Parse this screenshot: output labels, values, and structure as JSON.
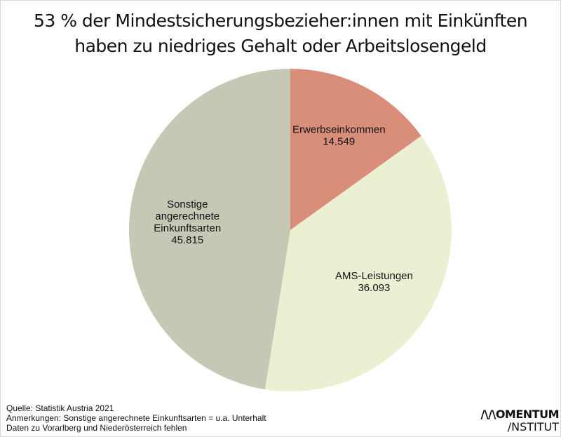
{
  "chart_data": {
    "type": "pie",
    "title": "53 % der Mindestsicherungsbezieher:innen mit Einkünften haben zu niedriges Gehalt oder Arbeitslosengeld",
    "title_lines": [
      "53 % der Mindestsicherungsbezieher:innen mit Einkünften",
      "haben zu niedriges Gehalt oder Arbeitslosengeld"
    ],
    "start": "top",
    "direction": "clockwise",
    "slices": [
      {
        "label": "Erwerbseinkommen",
        "value": 14549,
        "value_label": "14.549",
        "color": "#d98e79",
        "label_lines": [
          "Erwerbseinkommen"
        ]
      },
      {
        "label": "AMS-Leistungen",
        "value": 36093,
        "value_label": "36.093",
        "color": "#ecf0d3",
        "label_lines": [
          "AMS-Leistungen"
        ]
      },
      {
        "label": "Sonstige angerechnete Einkunftsarten",
        "value": 45815,
        "value_label": "45.815",
        "color": "#c6c8b5",
        "label_lines": [
          "Sonstige",
          "angerechnete",
          "Einkunftsarten"
        ]
      }
    ]
  },
  "footer": {
    "source": "Quelle: Statistik Austria 2021",
    "note": "Anmerkungen: Sonstige angerechnete Einkunftsarten = u.a. Unterhalt",
    "note2": "Daten zu Vorarlberg und Niederösterreich fehlen"
  },
  "logo": {
    "line1": "/\\/\\OMENTUM",
    "line2": "/NSTITUT"
  }
}
